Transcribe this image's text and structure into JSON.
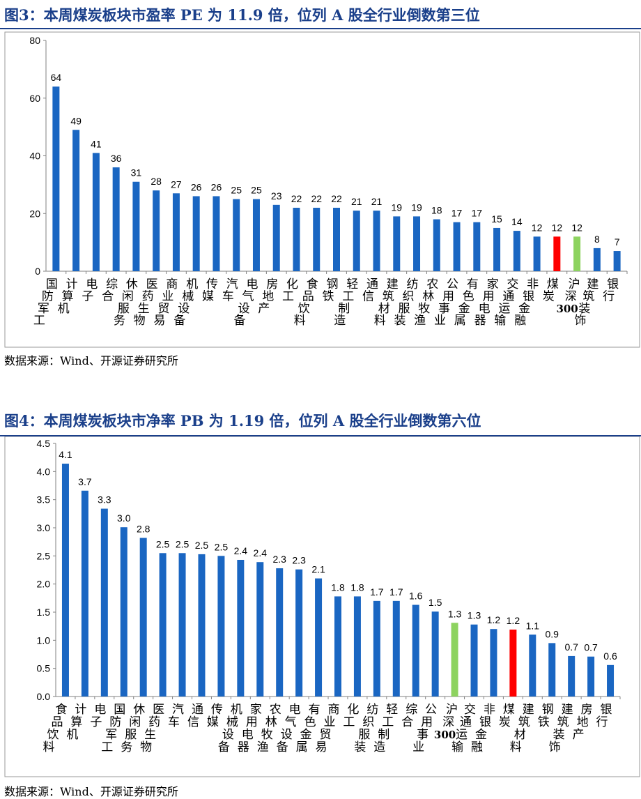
{
  "charts": [
    {
      "figure_title": "图3：本周煤炭板块市盈率 PE 为 11.9 倍，位列 A 股全行业倒数第三位",
      "source": "数据来源：Wind、开源证券研究所"
    },
    {
      "figure_title": "图4：本周煤炭板块市净率 PB 为 1.19 倍，位列 A 股全行业倒数第六位",
      "source": "数据来源：Wind、开源证券研究所"
    }
  ],
  "colors": {
    "default": "#1a66c2",
    "highlight_coal": "#ff0000",
    "highlight_index": "#8dd35f",
    "title": "#1a3f8a"
  },
  "chart_data": [
    {
      "type": "bar",
      "categories": [
        "国防军工",
        "计算机",
        "电子",
        "综合",
        "休闲服务",
        "医药生物",
        "商业贸易",
        "机械设备",
        "传媒",
        "汽车",
        "电气设备",
        "房地产",
        "化工",
        "食品饮料",
        "钢铁",
        "轻工制造",
        "通信",
        "建筑材料",
        "纺织服装",
        "农林牧渔",
        "公用事业",
        "有色金属",
        "家用电器",
        "交通运输",
        "非银金融",
        "煤炭",
        "沪深300",
        "建筑装饰",
        "银行"
      ],
      "values": [
        64,
        49,
        41,
        36,
        31,
        28,
        27,
        26,
        26,
        25,
        25,
        23,
        22,
        22,
        22,
        21,
        21,
        19,
        19,
        18,
        17,
        17,
        15,
        14,
        12,
        12,
        12,
        8,
        7
      ],
      "data_labels": [
        "64",
        "49",
        "41",
        "36",
        "31",
        "28",
        "27",
        "26",
        "26",
        "25",
        "25",
        "23",
        "22",
        "22",
        "22",
        "21",
        "21",
        "19",
        "19",
        "18",
        "17",
        "17",
        "15",
        "14",
        "12",
        "12",
        "12",
        "8",
        "7"
      ],
      "highlight": {
        "煤炭": "#ff0000",
        "沪深300": "#8dd35f"
      },
      "yticks": [
        "0",
        "20",
        "40",
        "60",
        "80"
      ],
      "ylim": [
        0,
        80
      ],
      "grid": false,
      "legend": "none"
    },
    {
      "type": "bar",
      "categories": [
        "食品饮料",
        "计算机",
        "电子",
        "国防军工",
        "休闲服务",
        "医药生物",
        "汽车",
        "通信",
        "传媒",
        "机械设备",
        "家用电器",
        "农林牧渔",
        "电气设备",
        "有色金属",
        "商业贸易",
        "化工",
        "纺织服装",
        "轻工制造",
        "综合",
        "公用事业",
        "沪深300",
        "交通运输",
        "非银金融",
        "煤炭",
        "建筑材料",
        "钢铁",
        "建筑装饰",
        "房地产",
        "银行"
      ],
      "values": [
        4.14,
        3.66,
        3.34,
        3.01,
        2.82,
        2.55,
        2.55,
        2.53,
        2.5,
        2.43,
        2.39,
        2.28,
        2.26,
        2.1,
        1.78,
        1.78,
        1.7,
        1.7,
        1.63,
        1.51,
        1.31,
        1.28,
        1.2,
        1.19,
        1.1,
        0.95,
        0.72,
        0.71,
        0.56
      ],
      "data_labels": [
        "4.1",
        "3.7",
        "3.3",
        "3.0",
        "2.8",
        "2.5",
        "2.5",
        "2.5",
        "2.5",
        "2.4",
        "2.4",
        "2.3",
        "2.3",
        "2.1",
        "1.8",
        "1.8",
        "1.7",
        "1.7",
        "1.6",
        "1.5",
        "1.3",
        "1.3",
        "1.2",
        "1.2",
        "1.1",
        "0.9",
        "0.7",
        "0.7",
        "0.6"
      ],
      "highlight": {
        "煤炭": "#ff0000",
        "沪深300": "#8dd35f"
      },
      "yticks": [
        "0.0",
        "0.5",
        "1.0",
        "1.5",
        "2.0",
        "2.5",
        "3.0",
        "3.5",
        "4.0",
        "4.5"
      ],
      "ylim": [
        0,
        4.5
      ],
      "grid": false,
      "legend": "none"
    }
  ]
}
